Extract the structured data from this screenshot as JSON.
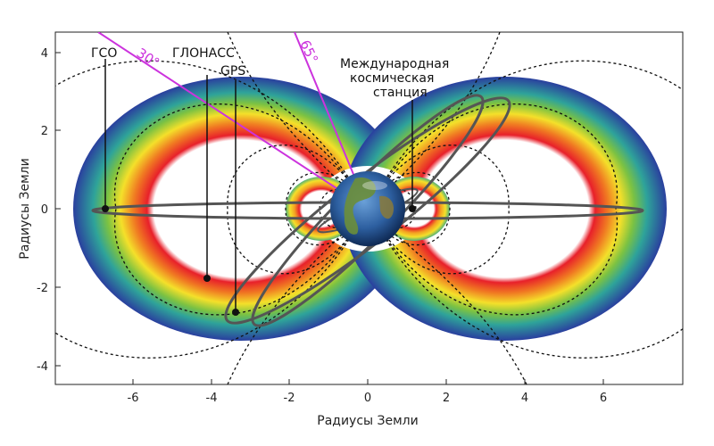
{
  "axes": {
    "x_title": "Радиусы Земли",
    "y_title": "Радиусы Земли",
    "x_ticks": [
      "-6",
      "-4",
      "-2",
      "0",
      "2",
      "4",
      "6"
    ],
    "y_ticks": [
      "4",
      "2",
      "0",
      "-2",
      "-4"
    ]
  },
  "labels": {
    "geo": "ГСО",
    "glonass": "ГЛОНАСС",
    "gps": "GPS",
    "iss_line1": "Международная",
    "iss_line2": "космическая",
    "iss_line3": "станция"
  },
  "angles": {
    "a30": "30°",
    "a65": "65°"
  },
  "colors": {
    "angle_lines": "#cc33dd",
    "belt_inner": "#e8202a",
    "belt_mid": "#f4e02a",
    "belt_outer": "#2a3f9e",
    "orbit": "#555555"
  },
  "icons": {
    "earth": "earth-globe-icon"
  }
}
